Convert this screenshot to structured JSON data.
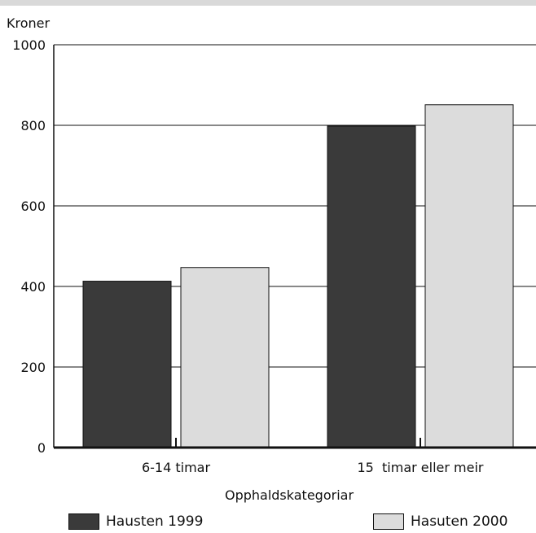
{
  "colors": {
    "series_1": "#3a3a3a",
    "series_2": "#dcdcdc",
    "top_band": "#d9d9d9",
    "axis": "#111111"
  },
  "chart_data": {
    "type": "bar",
    "title": "",
    "ylabel": "Kroner",
    "xlabel": "Opphaldskategoriar",
    "categories": [
      "6-14 timar",
      "15  timar eller meir"
    ],
    "series": [
      {
        "name": "Hausten 1999",
        "values": [
          413,
          798
        ]
      },
      {
        "name": "Hasuten 2000",
        "values": [
          447,
          851
        ]
      }
    ],
    "ylim": [
      0,
      1000
    ],
    "yticks": [
      0,
      200,
      400,
      600,
      800,
      1000
    ],
    "grid": true,
    "legend_position": "bottom"
  }
}
